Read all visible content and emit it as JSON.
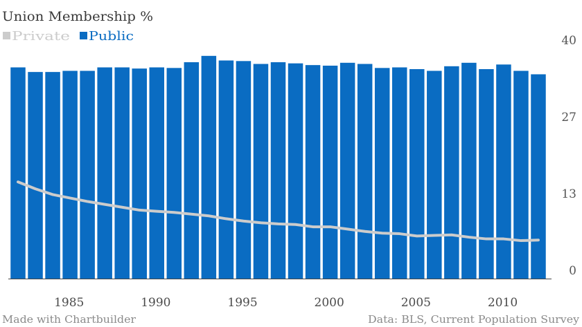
{
  "chart_data": {
    "type": "bar",
    "title": "Union Membership %",
    "x": [
      1983,
      1984,
      1985,
      1986,
      1987,
      1988,
      1989,
      1990,
      1991,
      1992,
      1993,
      1994,
      1995,
      1996,
      1997,
      1998,
      1999,
      2000,
      2001,
      2002,
      2003,
      2004,
      2005,
      2006,
      2007,
      2008,
      2009,
      2010,
      2011,
      2012,
      2013
    ],
    "x_ticks": [
      "1985",
      "1990",
      "1995",
      "2000",
      "2005",
      "2010"
    ],
    "y_ticks": [
      {
        "value": 0,
        "label": "0"
      },
      {
        "value": 13.33,
        "label": "13"
      },
      {
        "value": 26.67,
        "label": "27"
      },
      {
        "value": 40,
        "label": "40"
      }
    ],
    "ylim": [
      0,
      40
    ],
    "y_axis_side": "right",
    "legend_position": "top-left",
    "grid": false,
    "series": [
      {
        "name": "Private",
        "type": "line",
        "color": "#cccccc",
        "values": [
          16.8,
          15.6,
          14.6,
          14.0,
          13.4,
          12.9,
          12.4,
          11.9,
          11.7,
          11.5,
          11.2,
          10.9,
          10.4,
          10.0,
          9.7,
          9.5,
          9.4,
          9.0,
          9.0,
          8.6,
          8.2,
          7.9,
          7.8,
          7.4,
          7.5,
          7.6,
          7.2,
          6.9,
          6.9,
          6.6,
          6.7
        ]
      },
      {
        "name": "Public",
        "type": "bar",
        "color": "#0a6cc2",
        "values": [
          36.7,
          35.9,
          35.9,
          36.1,
          36.1,
          36.7,
          36.7,
          36.5,
          36.7,
          36.6,
          37.6,
          38.7,
          37.9,
          37.8,
          37.3,
          37.6,
          37.4,
          37.1,
          37.0,
          37.5,
          37.3,
          36.6,
          36.7,
          36.4,
          36.1,
          36.9,
          37.5,
          36.4,
          37.2,
          36.1,
          35.5
        ]
      }
    ]
  },
  "footer": {
    "credit": "Made with Chartbuilder",
    "source": "Data: BLS, Current Population Survey"
  }
}
